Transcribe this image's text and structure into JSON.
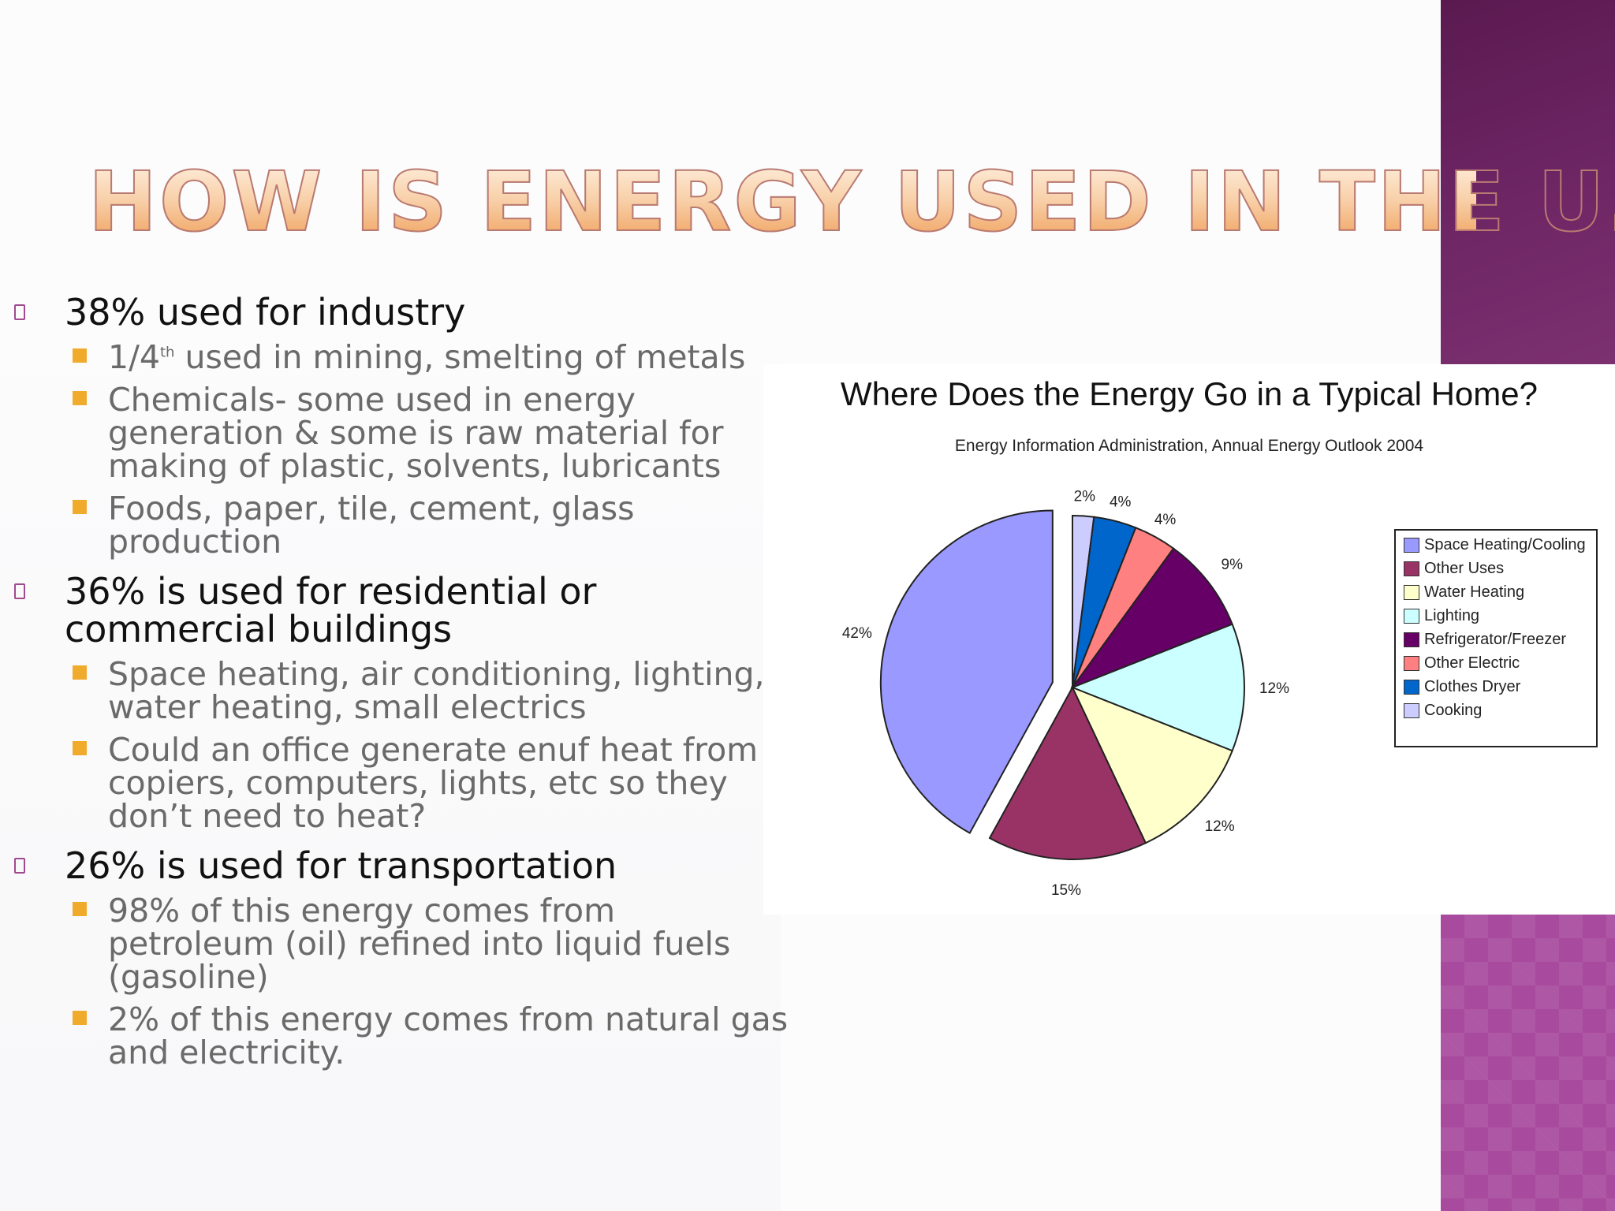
{
  "slide": {
    "title": "How is Energy used in the U.S.?"
  },
  "bullets": [
    {
      "text": "38% used for industry",
      "children": [
        {
          "pre": "1/4",
          "sup": "th",
          "post": " used in mining, smelting of metals"
        },
        {
          "text": "Chemicals- some used in energy generation & some is raw material for making of plastic, solvents, lubricants"
        },
        {
          "text": "Foods, paper, tile, cement, glass production"
        }
      ]
    },
    {
      "text": "36% is used for residential or commercial buildings",
      "children": [
        {
          "text": "Space heating, air conditioning, lighting, water heating, small electrics"
        },
        {
          "text": "Could an office generate enuf heat from copiers, computers, lights, etc so they don’t need to heat?"
        }
      ]
    },
    {
      "text": "26% is used for transportation",
      "children": [
        {
          "text": "98% of this energy comes from petroleum (oil) refined into liquid fuels (gasoline)"
        },
        {
          "text": "2% of this energy comes from natural gas and electricity."
        }
      ]
    }
  ],
  "chart_data": {
    "type": "pie",
    "title": "Where Does the Energy Go in a Typical Home?",
    "subtitle": "Energy Information Administration, Annual Energy Outlook 2004",
    "legend_position": "right",
    "exploded_slice": "Space Heating/Cooling",
    "slices": [
      {
        "label": "Space Heating/Cooling",
        "legend_label": "Space Heating/Cooling",
        "value": 42,
        "value_label": "42%",
        "color": "#9999ff"
      },
      {
        "label": "Other Uses",
        "legend_label": "Other Uses",
        "value": 15,
        "value_label": "15%",
        "color": "#993366"
      },
      {
        "label": "Water Heating",
        "legend_label": "Water Heating",
        "value": 12,
        "value_label": "12%",
        "color": "#ffffcc"
      },
      {
        "label": "Lighting",
        "legend_label": "Lighting",
        "value": 12,
        "value_label": "12%",
        "color": "#ccffff"
      },
      {
        "label": "Refrigerator/Freezer",
        "legend_label": "Refrigerator/Freezer",
        "value": 9,
        "value_label": "9%",
        "color": "#660066"
      },
      {
        "label": "Other Electric",
        "legend_label": "Other Electric",
        "value": 4,
        "value_label": "4%",
        "color": "#ff8080"
      },
      {
        "label": "Clothes Dryer",
        "legend_label": "Clothes Dryer",
        "value": 4,
        "value_label": "4%",
        "color": "#0066cc"
      },
      {
        "label": "Cooking",
        "legend_label": "Cooking",
        "value": 2,
        "value_label": "2%",
        "color": "#ccccff"
      }
    ]
  },
  "theme": {
    "bullet_mark_color": "#a04a8f",
    "sub_bullet_color": "#f0aa2c",
    "deco_dark": "#6b2462",
    "deco_light": "#a84a9e"
  }
}
